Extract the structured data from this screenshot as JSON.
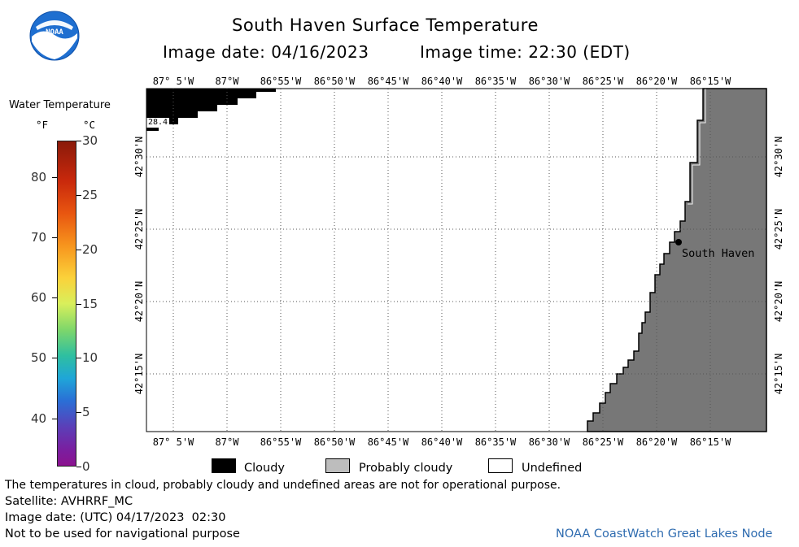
{
  "header": {
    "title": "South Haven Surface Temperature",
    "image_date": "Image date: 04/16/2023",
    "image_time": "Image time: 22:30 (EDT)"
  },
  "logo": {
    "text": "NOAA"
  },
  "colorbar": {
    "title": "Water Temperature",
    "unit_f": "°F",
    "unit_c": "°C",
    "f_ticks": [
      {
        "value": 80,
        "label": "80"
      },
      {
        "value": 70,
        "label": "70"
      },
      {
        "value": 60,
        "label": "60"
      },
      {
        "value": 50,
        "label": "50"
      },
      {
        "value": 40,
        "label": "40"
      }
    ],
    "c_ticks": [
      {
        "value": 30,
        "label": "30"
      },
      {
        "value": 25,
        "label": "25"
      },
      {
        "value": 20,
        "label": "20"
      },
      {
        "value": 15,
        "label": "15"
      },
      {
        "value": 10,
        "label": "10"
      },
      {
        "value": 5,
        "label": "5"
      },
      {
        "value": 0,
        "label": "0"
      }
    ],
    "c_range": [
      0,
      30
    ]
  },
  "map": {
    "lon_labels": [
      "87° 5'W",
      "87°W",
      "86°55'W",
      "86°50'W",
      "86°45'W",
      "86°40'W",
      "86°35'W",
      "86°30'W",
      "86°25'W",
      "86°20'W",
      "86°15'W"
    ],
    "lat_labels": [
      "42°30'N",
      "42°25'N",
      "42°20'N",
      "42°15'N"
    ],
    "city": "South Haven",
    "temp_label": "28.4",
    "colors": {
      "land": "#777777",
      "cloud": "#000000",
      "water": "#ffffff"
    }
  },
  "legend": {
    "cloudy": "Cloudy",
    "probably_cloudy": "Probably cloudy",
    "undefined": "Undefined",
    "colors": {
      "cloudy": "#000000",
      "probably_cloudy": "#bdbdbd",
      "undefined": "#ffffff"
    }
  },
  "footer": {
    "disclaimer": "The temperatures in cloud, probably cloudy and undefined areas are not for operational purpose.",
    "satellite": "Satellite: AVHRRF_MC",
    "utc_date": "Image date: (UTC) 04/17/2023  02:30",
    "nav_warning": "Not to be used for navigational purpose",
    "credit": "NOAA CoastWatch Great Lakes Node"
  }
}
